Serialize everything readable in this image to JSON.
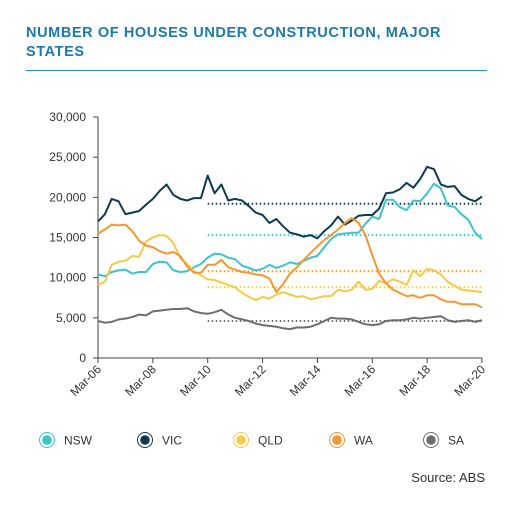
{
  "title": "NUMBER OF HOUSES UNDER CONSTRUCTION, MAJOR STATES",
  "source": "Source: ABS",
  "chart_data": {
    "type": "line",
    "title": "NUMBER OF HOUSES UNDER CONSTRUCTION, MAJOR STATES",
    "x_tick_labels": [
      "Mar-06",
      "Mar-08",
      "Mar-10",
      "Mar-12",
      "Mar-14",
      "Mar-16",
      "Mar-18",
      "Mar-20"
    ],
    "y_ticks": [
      0,
      5000,
      10000,
      15000,
      20000,
      25000,
      30000
    ],
    "y_tick_labels": [
      "0",
      "5,000",
      "10,000",
      "15,000",
      "20,000",
      "25,000",
      "30,000"
    ],
    "ylim": [
      0,
      30000
    ],
    "xlim": [
      2006.0,
      2020.0
    ],
    "grid": false,
    "legend_position": "bottom",
    "series": [
      {
        "name": "NSW",
        "color": "#3cc3cf",
        "average_since_2010": 15300,
        "points": [
          [
            2006.0,
            10400
          ],
          [
            2006.25,
            10200
          ],
          [
            2006.5,
            10700
          ],
          [
            2006.75,
            10900
          ],
          [
            2007.0,
            11000
          ],
          [
            2007.25,
            10500
          ],
          [
            2007.5,
            10700
          ],
          [
            2007.75,
            10700
          ],
          [
            2008.0,
            11700
          ],
          [
            2008.25,
            12000
          ],
          [
            2008.5,
            11900
          ],
          [
            2008.75,
            10900
          ],
          [
            2009.0,
            10700
          ],
          [
            2009.25,
            10800
          ],
          [
            2009.5,
            11300
          ],
          [
            2009.75,
            11700
          ],
          [
            2010.0,
            12500
          ],
          [
            2010.25,
            13000
          ],
          [
            2010.5,
            12900
          ],
          [
            2010.75,
            12500
          ],
          [
            2011.0,
            12300
          ],
          [
            2011.25,
            11500
          ],
          [
            2011.5,
            11200
          ],
          [
            2011.75,
            10900
          ],
          [
            2012.0,
            11100
          ],
          [
            2012.25,
            11600
          ],
          [
            2012.5,
            11200
          ],
          [
            2012.75,
            11500
          ],
          [
            2013.0,
            11900
          ],
          [
            2013.25,
            11700
          ],
          [
            2013.5,
            12100
          ],
          [
            2013.75,
            12500
          ],
          [
            2014.0,
            12700
          ],
          [
            2014.25,
            13800
          ],
          [
            2014.5,
            14800
          ],
          [
            2014.75,
            15400
          ],
          [
            2015.0,
            15500
          ],
          [
            2015.25,
            15600
          ],
          [
            2015.5,
            15600
          ],
          [
            2015.75,
            16700
          ],
          [
            2016.0,
            17600
          ],
          [
            2016.25,
            17300
          ],
          [
            2016.5,
            19700
          ],
          [
            2016.75,
            19700
          ],
          [
            2017.0,
            18800
          ],
          [
            2017.25,
            18400
          ],
          [
            2017.5,
            19600
          ],
          [
            2017.75,
            19500
          ],
          [
            2018.0,
            20500
          ],
          [
            2018.25,
            21700
          ],
          [
            2018.5,
            21100
          ],
          [
            2018.75,
            19000
          ],
          [
            2019.0,
            18800
          ],
          [
            2019.25,
            17900
          ],
          [
            2019.5,
            17200
          ],
          [
            2019.75,
            15600
          ],
          [
            2020.0,
            14800
          ]
        ]
      },
      {
        "name": "VIC",
        "color": "#0e3a52",
        "average_since_2010": 19200,
        "points": [
          [
            2006.0,
            17000
          ],
          [
            2006.25,
            17900
          ],
          [
            2006.5,
            19800
          ],
          [
            2006.75,
            19500
          ],
          [
            2007.0,
            17900
          ],
          [
            2007.25,
            18100
          ],
          [
            2007.5,
            18300
          ],
          [
            2007.75,
            19100
          ],
          [
            2008.0,
            19800
          ],
          [
            2008.25,
            20800
          ],
          [
            2008.5,
            21600
          ],
          [
            2008.75,
            20300
          ],
          [
            2009.0,
            19800
          ],
          [
            2009.25,
            19600
          ],
          [
            2009.5,
            19900
          ],
          [
            2009.75,
            19900
          ],
          [
            2010.0,
            22700
          ],
          [
            2010.25,
            20500
          ],
          [
            2010.5,
            21600
          ],
          [
            2010.75,
            19600
          ],
          [
            2011.0,
            19800
          ],
          [
            2011.25,
            19600
          ],
          [
            2011.5,
            18900
          ],
          [
            2011.75,
            18100
          ],
          [
            2012.0,
            17800
          ],
          [
            2012.25,
            16800
          ],
          [
            2012.5,
            17300
          ],
          [
            2012.75,
            16400
          ],
          [
            2013.0,
            15600
          ],
          [
            2013.25,
            15400
          ],
          [
            2013.5,
            15100
          ],
          [
            2013.75,
            15300
          ],
          [
            2014.0,
            14900
          ],
          [
            2014.25,
            15800
          ],
          [
            2014.5,
            16500
          ],
          [
            2014.75,
            17600
          ],
          [
            2015.0,
            16600
          ],
          [
            2015.25,
            17100
          ],
          [
            2015.5,
            17700
          ],
          [
            2015.75,
            17800
          ],
          [
            2016.0,
            17800
          ],
          [
            2016.25,
            18600
          ],
          [
            2016.5,
            20500
          ],
          [
            2016.75,
            20600
          ],
          [
            2017.0,
            21000
          ],
          [
            2017.25,
            21800
          ],
          [
            2017.5,
            21200
          ],
          [
            2017.75,
            22300
          ],
          [
            2018.0,
            23800
          ],
          [
            2018.25,
            23500
          ],
          [
            2018.5,
            21600
          ],
          [
            2018.75,
            21300
          ],
          [
            2019.0,
            21400
          ],
          [
            2019.25,
            20300
          ],
          [
            2019.5,
            19800
          ],
          [
            2019.75,
            19500
          ],
          [
            2020.0,
            20100
          ]
        ]
      },
      {
        "name": "QLD",
        "color": "#f7c948",
        "average_since_2010": 8800,
        "points": [
          [
            2006.0,
            9100
          ],
          [
            2006.25,
            9500
          ],
          [
            2006.5,
            11600
          ],
          [
            2006.75,
            12000
          ],
          [
            2007.0,
            12100
          ],
          [
            2007.25,
            12700
          ],
          [
            2007.5,
            12600
          ],
          [
            2007.75,
            14500
          ],
          [
            2008.0,
            15000
          ],
          [
            2008.25,
            15300
          ],
          [
            2008.5,
            15200
          ],
          [
            2008.75,
            14300
          ],
          [
            2009.0,
            12400
          ],
          [
            2009.25,
            11700
          ],
          [
            2009.5,
            10800
          ],
          [
            2009.75,
            10300
          ],
          [
            2010.0,
            9800
          ],
          [
            2010.25,
            9700
          ],
          [
            2010.5,
            9400
          ],
          [
            2010.75,
            9100
          ],
          [
            2011.0,
            8800
          ],
          [
            2011.25,
            8100
          ],
          [
            2011.5,
            7600
          ],
          [
            2011.75,
            7200
          ],
          [
            2012.0,
            7600
          ],
          [
            2012.25,
            7400
          ],
          [
            2012.5,
            7900
          ],
          [
            2012.75,
            8200
          ],
          [
            2013.0,
            7900
          ],
          [
            2013.25,
            7600
          ],
          [
            2013.5,
            7700
          ],
          [
            2013.75,
            7300
          ],
          [
            2014.0,
            7500
          ],
          [
            2014.25,
            7700
          ],
          [
            2014.5,
            7700
          ],
          [
            2014.75,
            8500
          ],
          [
            2015.0,
            8300
          ],
          [
            2015.25,
            8500
          ],
          [
            2015.5,
            9500
          ],
          [
            2015.75,
            8500
          ],
          [
            2016.0,
            8600
          ],
          [
            2016.25,
            9600
          ],
          [
            2016.5,
            9300
          ],
          [
            2016.75,
            9800
          ],
          [
            2017.0,
            9500
          ],
          [
            2017.25,
            9100
          ],
          [
            2017.5,
            10900
          ],
          [
            2017.75,
            10200
          ],
          [
            2018.0,
            11100
          ],
          [
            2018.25,
            10900
          ],
          [
            2018.5,
            10400
          ],
          [
            2018.75,
            9500
          ],
          [
            2019.0,
            9000
          ],
          [
            2019.25,
            8500
          ],
          [
            2019.5,
            8400
          ],
          [
            2019.75,
            8300
          ],
          [
            2020.0,
            8200
          ]
        ]
      },
      {
        "name": "WA",
        "color": "#f29731",
        "average_since_2010": 10800,
        "points": [
          [
            2006.0,
            15500
          ],
          [
            2006.25,
            16000
          ],
          [
            2006.5,
            16600
          ],
          [
            2006.75,
            16500
          ],
          [
            2007.0,
            16600
          ],
          [
            2007.25,
            15800
          ],
          [
            2007.5,
            14600
          ],
          [
            2007.75,
            14000
          ],
          [
            2008.0,
            13800
          ],
          [
            2008.25,
            13300
          ],
          [
            2008.5,
            13000
          ],
          [
            2008.75,
            13200
          ],
          [
            2009.0,
            12700
          ],
          [
            2009.25,
            11400
          ],
          [
            2009.5,
            10600
          ],
          [
            2009.75,
            10600
          ],
          [
            2010.0,
            11600
          ],
          [
            2010.25,
            11600
          ],
          [
            2010.5,
            12200
          ],
          [
            2010.75,
            11300
          ],
          [
            2011.0,
            11000
          ],
          [
            2011.25,
            10700
          ],
          [
            2011.5,
            10600
          ],
          [
            2011.75,
            10400
          ],
          [
            2012.0,
            10300
          ],
          [
            2012.25,
            9900
          ],
          [
            2012.5,
            8200
          ],
          [
            2012.75,
            9200
          ],
          [
            2013.0,
            10500
          ],
          [
            2013.25,
            11300
          ],
          [
            2013.5,
            12200
          ],
          [
            2013.75,
            13100
          ],
          [
            2014.0,
            13900
          ],
          [
            2014.25,
            14700
          ],
          [
            2014.5,
            15300
          ],
          [
            2014.75,
            16000
          ],
          [
            2015.0,
            16800
          ],
          [
            2015.25,
            17400
          ],
          [
            2015.5,
            16800
          ],
          [
            2015.75,
            15300
          ],
          [
            2016.0,
            12800
          ],
          [
            2016.25,
            10500
          ],
          [
            2016.5,
            9300
          ],
          [
            2016.75,
            8500
          ],
          [
            2017.0,
            8100
          ],
          [
            2017.25,
            7700
          ],
          [
            2017.5,
            7800
          ],
          [
            2017.75,
            7500
          ],
          [
            2018.0,
            7800
          ],
          [
            2018.25,
            7800
          ],
          [
            2018.5,
            7300
          ],
          [
            2018.75,
            7000
          ],
          [
            2019.0,
            7000
          ],
          [
            2019.25,
            6700
          ],
          [
            2019.5,
            6700
          ],
          [
            2019.75,
            6700
          ],
          [
            2020.0,
            6300
          ]
        ]
      },
      {
        "name": "SA",
        "color": "#6e6e6e",
        "average_since_2010": 4600,
        "points": [
          [
            2006.0,
            4600
          ],
          [
            2006.25,
            4400
          ],
          [
            2006.5,
            4500
          ],
          [
            2006.75,
            4800
          ],
          [
            2007.0,
            4900
          ],
          [
            2007.25,
            5100
          ],
          [
            2007.5,
            5400
          ],
          [
            2007.75,
            5300
          ],
          [
            2008.0,
            5800
          ],
          [
            2008.25,
            5900
          ],
          [
            2008.5,
            6000
          ],
          [
            2008.75,
            6100
          ],
          [
            2009.0,
            6100
          ],
          [
            2009.25,
            6200
          ],
          [
            2009.5,
            5800
          ],
          [
            2009.75,
            5600
          ],
          [
            2010.0,
            5500
          ],
          [
            2010.25,
            5700
          ],
          [
            2010.5,
            6000
          ],
          [
            2010.75,
            5400
          ],
          [
            2011.0,
            5000
          ],
          [
            2011.25,
            4800
          ],
          [
            2011.5,
            4600
          ],
          [
            2011.75,
            4300
          ],
          [
            2012.0,
            4100
          ],
          [
            2012.25,
            4000
          ],
          [
            2012.5,
            3900
          ],
          [
            2012.75,
            3700
          ],
          [
            2013.0,
            3600
          ],
          [
            2013.25,
            3800
          ],
          [
            2013.5,
            3800
          ],
          [
            2013.75,
            3900
          ],
          [
            2014.0,
            4200
          ],
          [
            2014.25,
            4600
          ],
          [
            2014.5,
            5000
          ],
          [
            2014.75,
            4900
          ],
          [
            2015.0,
            4900
          ],
          [
            2015.25,
            4800
          ],
          [
            2015.5,
            4500
          ],
          [
            2015.75,
            4200
          ],
          [
            2016.0,
            4100
          ],
          [
            2016.25,
            4200
          ],
          [
            2016.5,
            4600
          ],
          [
            2016.75,
            4700
          ],
          [
            2017.0,
            4700
          ],
          [
            2017.25,
            4800
          ],
          [
            2017.5,
            5000
          ],
          [
            2017.75,
            4900
          ],
          [
            2018.0,
            5000
          ],
          [
            2018.25,
            5100
          ],
          [
            2018.5,
            5200
          ],
          [
            2018.75,
            4700
          ],
          [
            2019.0,
            4500
          ],
          [
            2019.25,
            4600
          ],
          [
            2019.5,
            4700
          ],
          [
            2019.75,
            4500
          ],
          [
            2020.0,
            4700
          ]
        ]
      }
    ]
  }
}
